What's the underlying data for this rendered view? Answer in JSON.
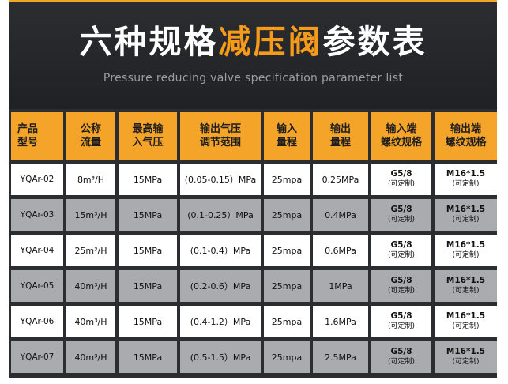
{
  "title": {
    "white_part": "六种规格",
    "orange_part": "减压阀",
    "white_part_2": "参数表"
  },
  "subtitle": "Pressure reducing valve specification parameter list",
  "colors": {
    "header_bg": "#2b2d31",
    "accent": "#f59a1b",
    "header_cell": "#f5a42a",
    "row_light": "#ffffff",
    "row_gray": "#a9abaf"
  },
  "table": {
    "headers": [
      [
        "产品",
        "型号"
      ],
      [
        "公称",
        "流量"
      ],
      [
        "最高输",
        "入气压"
      ],
      [
        "输出气压",
        "调节范围"
      ],
      [
        "输入",
        "量程"
      ],
      [
        "输出",
        "量程"
      ],
      [
        "输入端",
        "螺纹规格"
      ],
      [
        "输出端",
        "螺纹规格"
      ]
    ],
    "rows": [
      {
        "model": "YQAr-02",
        "flow": "8m³/H",
        "max_input": "15MPa",
        "range": "(0.05-0.15）MPa",
        "input_range": "25mpa",
        "output_range": "0.25MPa",
        "in_thread": "G5/8",
        "in_note": "(可定制)",
        "out_thread": "M16*1.5",
        "out_note": "(可定制)"
      },
      {
        "model": "YQAr-03",
        "flow": "15m³/H",
        "max_input": "15MPa",
        "range": "(0.1-0.25）MPa",
        "input_range": "25mpa",
        "output_range": "0.4MPa",
        "in_thread": "G5/8",
        "in_note": "(可定制)",
        "out_thread": "M16*1.5",
        "out_note": "(可定制)"
      },
      {
        "model": "YQAr-04",
        "flow": "25m³/H",
        "max_input": "15MPa",
        "range": "(0.1-0.4）MPa",
        "input_range": "25mpa",
        "output_range": "0.6MPa",
        "in_thread": "G5/8",
        "in_note": "(可定制)",
        "out_thread": "M16*1.5",
        "out_note": "(可定制)"
      },
      {
        "model": "YQAr-05",
        "flow": "40m³/H",
        "max_input": "15MPa",
        "range": "(0.2-0.6）MPa",
        "input_range": "25mpa",
        "output_range": "1MPa",
        "in_thread": "G5/8",
        "in_note": "(可定制)",
        "out_thread": "M16*1.5",
        "out_note": "(可定制)"
      },
      {
        "model": "YQAr-06",
        "flow": "40m³/H",
        "max_input": "15MPa",
        "range": "(0.4-1.2）MPa",
        "input_range": "25mpa",
        "output_range": "1.6MPa",
        "in_thread": "G5/8",
        "in_note": "(可定制)",
        "out_thread": "M16*1.5",
        "out_note": "(可定制)"
      },
      {
        "model": "YQAr-07",
        "flow": "40m³/H",
        "max_input": "15MPa",
        "range": "(0.5-1.5）MPa",
        "input_range": "25mpa",
        "output_range": "2.5MPa",
        "in_thread": "G5/8",
        "in_note": "(可定制)",
        "out_thread": "M16*1.5",
        "out_note": "(可定制)"
      }
    ]
  }
}
